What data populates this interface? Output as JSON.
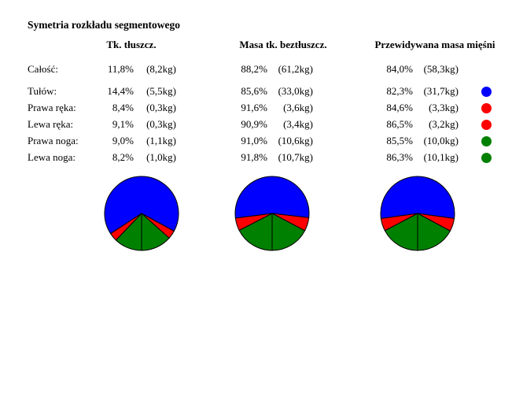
{
  "title": "Symetria rozkładu segmentowego",
  "columns": [
    {
      "header": "Tk. tłuszcz."
    },
    {
      "header": "Masa tk. beztłuszcz."
    },
    {
      "header": "Przewidywana masa mięśni"
    }
  ],
  "rows": [
    {
      "label": "Całość:",
      "c1_pct": "11,8%",
      "c1_kg": "(8,2kg)",
      "c2_pct": "88,2%",
      "c2_kg": "(61,2kg)",
      "c3_pct": "84,0%",
      "c3_kg": "(58,3kg)",
      "dot_color": ""
    },
    {
      "label": "Tułów:",
      "c1_pct": "14,4%",
      "c1_kg": "(5,5kg)",
      "c2_pct": "85,6%",
      "c2_kg": "(33,0kg)",
      "c3_pct": "82,3%",
      "c3_kg": "(31,7kg)",
      "dot_color": "#0000ff"
    },
    {
      "label": "Prawa ręka:",
      "c1_pct": "8,4%",
      "c1_kg": "(0,3kg)",
      "c2_pct": "91,6%",
      "c2_kg": "(3,6kg)",
      "c3_pct": "84,6%",
      "c3_kg": "(3,3kg)",
      "dot_color": "#ff0000"
    },
    {
      "label": "Lewa ręka:",
      "c1_pct": "9,1%",
      "c1_kg": "(0,3kg)",
      "c2_pct": "90,9%",
      "c2_kg": "(3,4kg)",
      "c3_pct": "86,5%",
      "c3_kg": "(3,2kg)",
      "dot_color": "#ff0000"
    },
    {
      "label": "Prawa noga:",
      "c1_pct": "9,0%",
      "c1_kg": "(1,1kg)",
      "c2_pct": "91,0%",
      "c2_kg": "(10,6kg)",
      "c3_pct": "85,5%",
      "c3_kg": "(10,0kg)",
      "dot_color": "#008000"
    },
    {
      "label": "Lewa noga:",
      "c1_pct": "8,2%",
      "c1_kg": "(1,0kg)",
      "c2_pct": "91,8%",
      "c2_kg": "(10,7kg)",
      "c3_pct": "86,3%",
      "c3_kg": "(10,1kg)",
      "dot_color": "#008000"
    }
  ],
  "legend_colors": {
    "tulow": "#0000ff",
    "reka": "#ff0000",
    "noga": "#008000"
  },
  "chart_data": [
    {
      "type": "pie",
      "title": "Tk. tłuszcz.",
      "total_kg": 8.2,
      "unit": "kg",
      "start": "bottom",
      "direction": "clockwise",
      "segments": [
        {
          "name": "Lewa noga",
          "value": 1.0,
          "color": "#008000"
        },
        {
          "name": "Lewa ręka",
          "value": 0.3,
          "color": "#ff0000"
        },
        {
          "name": "Tułów",
          "value": 5.5,
          "color": "#0000ff"
        },
        {
          "name": "Prawa ręka",
          "value": 0.3,
          "color": "#ff0000"
        },
        {
          "name": "Prawa noga",
          "value": 1.1,
          "color": "#008000"
        }
      ]
    },
    {
      "type": "pie",
      "title": "Masa tk. beztłuszcz.",
      "total_kg": 61.2,
      "unit": "kg",
      "start": "bottom",
      "direction": "clockwise",
      "segments": [
        {
          "name": "Lewa noga",
          "value": 10.7,
          "color": "#008000"
        },
        {
          "name": "Lewa ręka",
          "value": 3.4,
          "color": "#ff0000"
        },
        {
          "name": "Tułów",
          "value": 33.0,
          "color": "#0000ff"
        },
        {
          "name": "Prawa ręka",
          "value": 3.6,
          "color": "#ff0000"
        },
        {
          "name": "Prawa noga",
          "value": 10.6,
          "color": "#008000"
        }
      ]
    },
    {
      "type": "pie",
      "title": "Przewidywana masa mięśni",
      "total_kg": 58.3,
      "unit": "kg",
      "start": "bottom",
      "direction": "clockwise",
      "segments": [
        {
          "name": "Lewa noga",
          "value": 10.1,
          "color": "#008000"
        },
        {
          "name": "Lewa ręka",
          "value": 3.2,
          "color": "#ff0000"
        },
        {
          "name": "Tułów",
          "value": 31.7,
          "color": "#0000ff"
        },
        {
          "name": "Prawa ręka",
          "value": 3.3,
          "color": "#ff0000"
        },
        {
          "name": "Prawa noga",
          "value": 10.0,
          "color": "#008000"
        }
      ]
    }
  ]
}
